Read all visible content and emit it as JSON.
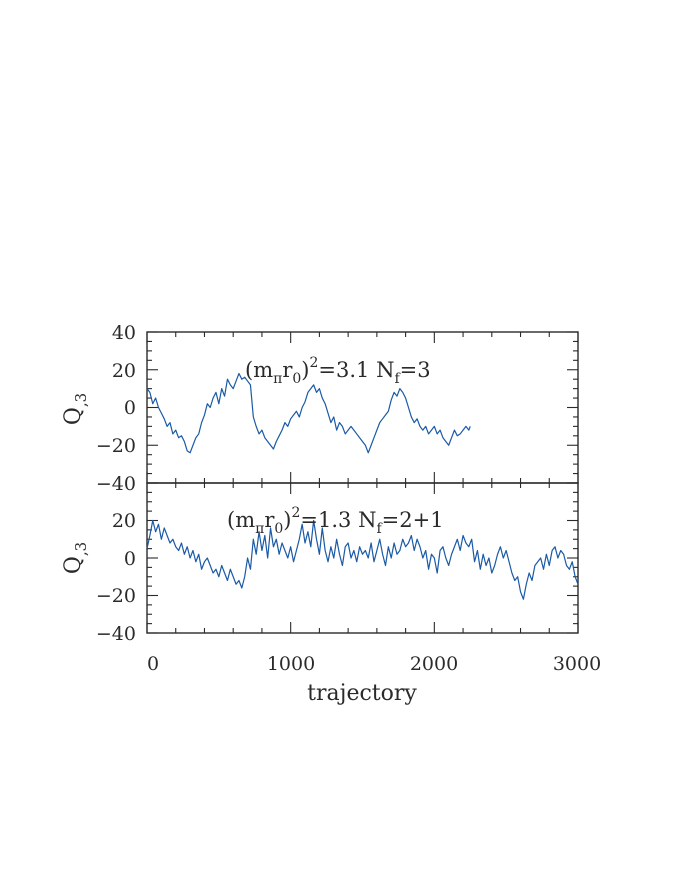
{
  "chart_data": [
    {
      "type": "line",
      "panel": "top",
      "ylabel": "Q",
      "ylabel_sub": ",3",
      "xlim": [
        0,
        3000
      ],
      "ylim": [
        -40,
        40
      ],
      "yticks": [
        40,
        20,
        0,
        -20,
        -40
      ],
      "ytick_labels": [
        "40",
        "20",
        "0",
        "−20",
        "−40"
      ],
      "annotation": {
        "open": "(m",
        "pi": "π",
        "r": "r",
        "zero": "0",
        "close": ")",
        "sq": "2",
        "value": "=3.1  N",
        "f": "f",
        "nf": "=3"
      },
      "color": "#1a5aa6",
      "series": [
        {
          "x": [
            0,
            20,
            40,
            60,
            80,
            100,
            120,
            140,
            160,
            180,
            200,
            220,
            240,
            260,
            280,
            300,
            320,
            340,
            360,
            380,
            400,
            420,
            440,
            460,
            480,
            500,
            520,
            540,
            560,
            580,
            600,
            620,
            640,
            660,
            680,
            700,
            720,
            740,
            760,
            780,
            800,
            820,
            840,
            860,
            880,
            900,
            920,
            940,
            960,
            980,
            1000,
            1020,
            1040,
            1060,
            1080,
            1100,
            1120,
            1140,
            1160,
            1180,
            1200,
            1220,
            1240,
            1260,
            1280,
            1300,
            1320,
            1340,
            1360,
            1380,
            1400,
            1420,
            1440,
            1460,
            1480,
            1500,
            1520,
            1540,
            1560,
            1580,
            1600,
            1620,
            1640,
            1660,
            1680,
            1700,
            1720,
            1740,
            1760,
            1780,
            1800,
            1820,
            1840,
            1860,
            1880,
            1900,
            1920,
            1940,
            1960,
            1980,
            2000,
            2020,
            2040,
            2060,
            2080,
            2100,
            2120,
            2140,
            2160,
            2180,
            2200,
            2220,
            2240,
            2250
          ],
          "y": [
            10,
            8,
            2,
            5,
            0,
            -3,
            -6,
            -10,
            -8,
            -14,
            -12,
            -16,
            -15,
            -18,
            -23,
            -24,
            -20,
            -16,
            -14,
            -8,
            -4,
            2,
            0,
            5,
            8,
            2,
            10,
            6,
            15,
            12,
            10,
            14,
            18,
            15,
            16,
            14,
            12,
            -5,
            -10,
            -14,
            -12,
            -16,
            -18,
            -20,
            -22,
            -18,
            -15,
            -12,
            -8,
            -10,
            -6,
            -4,
            -2,
            -5,
            0,
            3,
            8,
            10,
            12,
            8,
            10,
            5,
            2,
            -3,
            -8,
            -5,
            -12,
            -8,
            -10,
            -14,
            -12,
            -10,
            -12,
            -14,
            -16,
            -18,
            -20,
            -24,
            -20,
            -16,
            -12,
            -8,
            -6,
            -4,
            -2,
            4,
            8,
            6,
            10,
            8,
            5,
            0,
            -5,
            -8,
            -6,
            -10,
            -12,
            -10,
            -14,
            -12,
            -10,
            -14,
            -12,
            -16,
            -18,
            -20,
            -16,
            -12,
            -15,
            -14,
            -12,
            -10,
            -12,
            -10
          ]
        }
      ]
    },
    {
      "type": "line",
      "panel": "bottom",
      "xlabel": "trajectory",
      "ylabel": "Q",
      "ylabel_sub": ",3",
      "xlim": [
        0,
        3000
      ],
      "ylim": [
        -40,
        40
      ],
      "yticks": [
        20,
        0,
        -20,
        -40
      ],
      "ytick_labels": [
        "20",
        "0",
        "−20",
        "−40"
      ],
      "xticks": [
        0,
        1000,
        2000,
        3000
      ],
      "xtick_labels": [
        "0",
        "1000",
        "2000",
        "3000"
      ],
      "annotation": {
        "open": "(m",
        "pi": "π",
        "r": "r",
        "zero": "0",
        "close": ")",
        "sq": "2",
        "value": "=1.3  N",
        "f": "f",
        "nf": "=2+1"
      },
      "color": "#1a5aa6",
      "series": [
        {
          "x": [
            0,
            20,
            40,
            60,
            80,
            100,
            120,
            140,
            160,
            180,
            200,
            220,
            240,
            260,
            280,
            300,
            320,
            340,
            360,
            380,
            400,
            420,
            440,
            460,
            480,
            500,
            520,
            540,
            560,
            580,
            600,
            620,
            640,
            660,
            680,
            700,
            720,
            740,
            760,
            780,
            800,
            820,
            840,
            860,
            880,
            900,
            920,
            940,
            960,
            980,
            1000,
            1020,
            1040,
            1060,
            1080,
            1100,
            1120,
            1140,
            1160,
            1180,
            1200,
            1220,
            1240,
            1260,
            1280,
            1300,
            1320,
            1340,
            1360,
            1380,
            1400,
            1420,
            1440,
            1460,
            1480,
            1500,
            1520,
            1540,
            1560,
            1580,
            1600,
            1620,
            1640,
            1660,
            1680,
            1700,
            1720,
            1740,
            1760,
            1780,
            1800,
            1820,
            1840,
            1860,
            1880,
            1900,
            1920,
            1940,
            1960,
            1980,
            2000,
            2020,
            2040,
            2060,
            2080,
            2100,
            2120,
            2140,
            2160,
            2180,
            2200,
            2220,
            2240,
            2260,
            2280,
            2300,
            2320,
            2340,
            2360,
            2380,
            2400,
            2420,
            2440,
            2460,
            2480,
            2500,
            2520,
            2540,
            2560,
            2580,
            2600,
            2620,
            2640,
            2660,
            2680,
            2700,
            2720,
            2740,
            2760,
            2780,
            2800,
            2820,
            2840,
            2860,
            2880,
            2900,
            2920,
            2940,
            2960,
            2980,
            3000
          ],
          "y": [
            5,
            12,
            20,
            14,
            18,
            10,
            16,
            12,
            8,
            10,
            6,
            4,
            8,
            2,
            6,
            0,
            4,
            -2,
            2,
            -6,
            -2,
            0,
            -4,
            -8,
            -6,
            -10,
            -4,
            -8,
            -12,
            -6,
            -10,
            -14,
            -12,
            -16,
            -10,
            0,
            -6,
            10,
            2,
            14,
            4,
            12,
            0,
            16,
            6,
            10,
            2,
            8,
            4,
            0,
            6,
            -2,
            4,
            10,
            18,
            8,
            14,
            6,
            20,
            10,
            2,
            16,
            4,
            -2,
            6,
            0,
            10,
            2,
            -4,
            6,
            8,
            0,
            4,
            -2,
            6,
            2,
            4,
            0,
            8,
            -2,
            4,
            10,
            2,
            -4,
            6,
            0,
            8,
            2,
            4,
            10,
            6,
            8,
            12,
            4,
            10,
            6,
            0,
            4,
            -6,
            2,
            0,
            -8,
            4,
            6,
            0,
            -4,
            2,
            6,
            10,
            4,
            12,
            8,
            6,
            10,
            -2,
            4,
            -6,
            2,
            -4,
            0,
            -8,
            -4,
            2,
            6,
            0,
            4,
            -2,
            -8,
            -12,
            -10,
            -18,
            -22,
            -14,
            -8,
            -12,
            -4,
            -2,
            0,
            -6,
            2,
            -4,
            4,
            6,
            0,
            4,
            2,
            -4,
            -6,
            -2,
            -10,
            -14
          ]
        }
      ]
    }
  ]
}
